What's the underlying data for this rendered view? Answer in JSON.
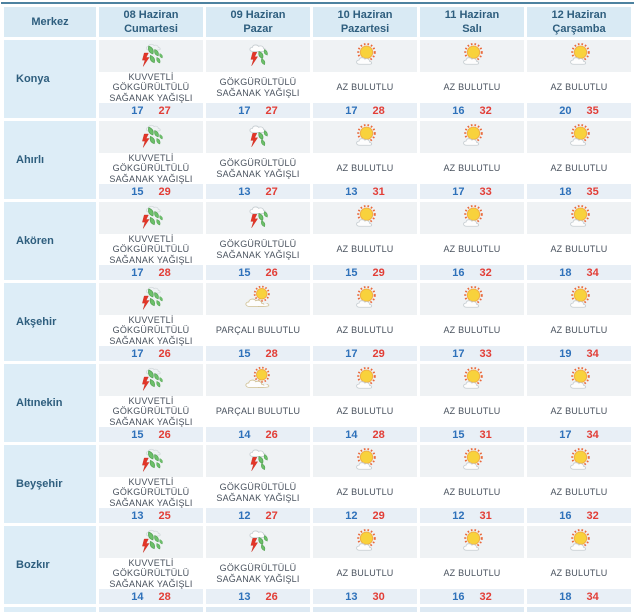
{
  "table": {
    "header": {
      "merkez": "Merkez",
      "days": [
        {
          "date": "08 Haziran",
          "day": "Cumartesi"
        },
        {
          "date": "09 Haziran",
          "day": "Pazar"
        },
        {
          "date": "10 Haziran",
          "day": "Pazartesi"
        },
        {
          "date": "11 Haziran",
          "day": "Salı"
        },
        {
          "date": "12 Haziran",
          "day": "Çarşamba"
        }
      ]
    },
    "rows": [
      {
        "city": "Konya",
        "cells": [
          {
            "icon": "heavy-thunderstorm",
            "desc": "KUVVETLİ GÖKGÜRÜLTÜLÜ SAĞANAK YAĞIŞLI",
            "min": 17,
            "max": 27
          },
          {
            "icon": "thunderstorm",
            "desc": "GÖKGÜRÜLTÜLÜ SAĞANAK YAĞIŞLI",
            "min": 17,
            "max": 27
          },
          {
            "icon": "mostly-sunny",
            "desc": "AZ BULUTLU",
            "min": 17,
            "max": 28
          },
          {
            "icon": "mostly-sunny",
            "desc": "AZ BULUTLU",
            "min": 16,
            "max": 32
          },
          {
            "icon": "mostly-sunny",
            "desc": "AZ BULUTLU",
            "min": 20,
            "max": 35
          }
        ]
      },
      {
        "city": "Ahırlı",
        "cells": [
          {
            "icon": "heavy-thunderstorm",
            "desc": "KUVVETLİ GÖKGÜRÜLTÜLÜ SAĞANAK YAĞIŞLI",
            "min": 15,
            "max": 29
          },
          {
            "icon": "thunderstorm",
            "desc": "GÖKGÜRÜLTÜLÜ SAĞANAK YAĞIŞLI",
            "min": 13,
            "max": 27
          },
          {
            "icon": "mostly-sunny",
            "desc": "AZ BULUTLU",
            "min": 13,
            "max": 31
          },
          {
            "icon": "mostly-sunny",
            "desc": "AZ BULUTLU",
            "min": 17,
            "max": 33
          },
          {
            "icon": "mostly-sunny",
            "desc": "AZ BULUTLU",
            "min": 18,
            "max": 35
          }
        ]
      },
      {
        "city": "Akören",
        "cells": [
          {
            "icon": "heavy-thunderstorm",
            "desc": "KUVVETLİ GÖKGÜRÜLTÜLÜ SAĞANAK YAĞIŞLI",
            "min": 17,
            "max": 28
          },
          {
            "icon": "thunderstorm",
            "desc": "GÖKGÜRÜLTÜLÜ SAĞANAK YAĞIŞLI",
            "min": 15,
            "max": 26
          },
          {
            "icon": "mostly-sunny",
            "desc": "AZ BULUTLU",
            "min": 15,
            "max": 29
          },
          {
            "icon": "mostly-sunny",
            "desc": "AZ BULUTLU",
            "min": 16,
            "max": 32
          },
          {
            "icon": "mostly-sunny",
            "desc": "AZ BULUTLU",
            "min": 18,
            "max": 34
          }
        ]
      },
      {
        "city": "Akşehir",
        "cells": [
          {
            "icon": "heavy-thunderstorm",
            "desc": "KUVVETLİ GÖKGÜRÜLTÜLÜ SAĞANAK YAĞIŞLI",
            "min": 17,
            "max": 26
          },
          {
            "icon": "partly-cloudy",
            "desc": "PARÇALI BULUTLU",
            "min": 15,
            "max": 28
          },
          {
            "icon": "mostly-sunny",
            "desc": "AZ BULUTLU",
            "min": 17,
            "max": 29
          },
          {
            "icon": "mostly-sunny",
            "desc": "AZ BULUTLU",
            "min": 17,
            "max": 33
          },
          {
            "icon": "mostly-sunny",
            "desc": "AZ BULUTLU",
            "min": 19,
            "max": 34
          }
        ]
      },
      {
        "city": "Altınekin",
        "cells": [
          {
            "icon": "heavy-thunderstorm",
            "desc": "KUVVETLİ GÖKGÜRÜLTÜLÜ SAĞANAK YAĞIŞLI",
            "min": 15,
            "max": 26
          },
          {
            "icon": "partly-cloudy",
            "desc": "PARÇALI BULUTLU",
            "min": 14,
            "max": 26
          },
          {
            "icon": "mostly-sunny",
            "desc": "AZ BULUTLU",
            "min": 14,
            "max": 28
          },
          {
            "icon": "mostly-sunny",
            "desc": "AZ BULUTLU",
            "min": 15,
            "max": 31
          },
          {
            "icon": "mostly-sunny",
            "desc": "AZ BULUTLU",
            "min": 17,
            "max": 34
          }
        ]
      },
      {
        "city": "Beyşehir",
        "cells": [
          {
            "icon": "heavy-thunderstorm",
            "desc": "KUVVETLİ GÖKGÜRÜLTÜLÜ SAĞANAK YAĞIŞLI",
            "min": 13,
            "max": 25
          },
          {
            "icon": "thunderstorm",
            "desc": "GÖKGÜRÜLTÜLÜ SAĞANAK YAĞIŞLI",
            "min": 12,
            "max": 27
          },
          {
            "icon": "mostly-sunny",
            "desc": "AZ BULUTLU",
            "min": 12,
            "max": 29
          },
          {
            "icon": "mostly-sunny",
            "desc": "AZ BULUTLU",
            "min": 12,
            "max": 31
          },
          {
            "icon": "mostly-sunny",
            "desc": "AZ BULUTLU",
            "min": 16,
            "max": 32
          }
        ]
      },
      {
        "city": "Bozkır",
        "cells": [
          {
            "icon": "heavy-thunderstorm",
            "desc": "KUVVETLİ GÖKGÜRÜLTÜLÜ SAĞANAK YAĞIŞLI",
            "min": 14,
            "max": 28
          },
          {
            "icon": "thunderstorm",
            "desc": "GÖKGÜRÜLTÜLÜ SAĞANAK YAĞIŞLI",
            "min": 13,
            "max": 26
          },
          {
            "icon": "mostly-sunny",
            "desc": "AZ BULUTLU",
            "min": 13,
            "max": 30
          },
          {
            "icon": "mostly-sunny",
            "desc": "AZ BULUTLU",
            "min": 16,
            "max": 32
          },
          {
            "icon": "mostly-sunny",
            "desc": "AZ BULUTLU",
            "min": 18,
            "max": 34
          }
        ]
      }
    ]
  },
  "colors": {
    "temp_min": "#2e71ba",
    "temp_max": "#e23d36",
    "header_bg": "#d9eaf4",
    "city_col_bg": "#ddedf7",
    "top_rule": "#4d82a0"
  }
}
